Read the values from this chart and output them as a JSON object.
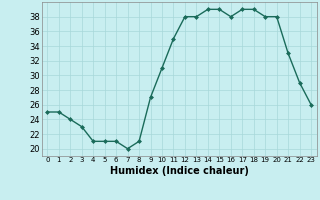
{
  "x": [
    0,
    1,
    2,
    3,
    4,
    5,
    6,
    7,
    8,
    9,
    10,
    11,
    12,
    13,
    14,
    15,
    16,
    17,
    18,
    19,
    20,
    21,
    22,
    23
  ],
  "y": [
    25,
    25,
    24,
    23,
    21,
    21,
    21,
    20,
    21,
    27,
    31,
    35,
    38,
    38,
    39,
    39,
    38,
    39,
    39,
    38,
    38,
    33,
    29,
    26
  ],
  "line_color": "#1a6b5a",
  "marker": "D",
  "marker_size": 2.0,
  "bg_color": "#c8eef0",
  "grid_color": "#a8d8da",
  "xlabel": "Humidex (Indice chaleur)",
  "xlim": [
    -0.5,
    23.5
  ],
  "ylim": [
    19,
    40
  ],
  "yticks": [
    20,
    22,
    24,
    26,
    28,
    30,
    32,
    34,
    36,
    38
  ],
  "xticks": [
    0,
    1,
    2,
    3,
    4,
    5,
    6,
    7,
    8,
    9,
    10,
    11,
    12,
    13,
    14,
    15,
    16,
    17,
    18,
    19,
    20,
    21,
    22,
    23
  ],
  "xlabel_fontsize": 7,
  "tick_fontsize": 6,
  "linewidth": 1.0
}
